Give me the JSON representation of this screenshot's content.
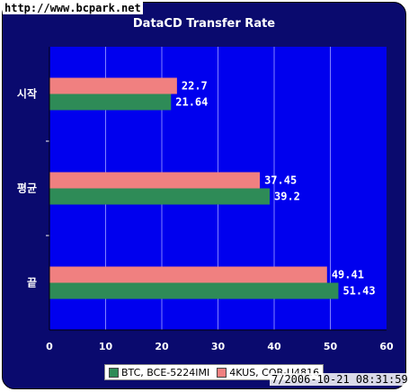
{
  "source_watermark": "http://www.bcpark.net",
  "timestamp_watermark": "7/2006-10-21 08:31:59",
  "chart_data": {
    "type": "bar",
    "orientation": "horizontal",
    "title": "DataCD Transfer Rate",
    "categories": [
      "시작",
      "평균",
      "끝"
    ],
    "series": [
      {
        "name": "BTC, BCE-5224IMI",
        "color": "#2e8b57",
        "values": [
          21.64,
          39.2,
          51.43
        ]
      },
      {
        "name": "4KUS, CQB-U4816",
        "color": "#f08080",
        "values": [
          22.7,
          37.45,
          49.41
        ]
      }
    ],
    "xlim": [
      0,
      60
    ],
    "x_ticks": [
      "0",
      "10",
      "20",
      "30",
      "40",
      "50",
      "60"
    ],
    "grid": true,
    "legend_position": "bottom"
  }
}
